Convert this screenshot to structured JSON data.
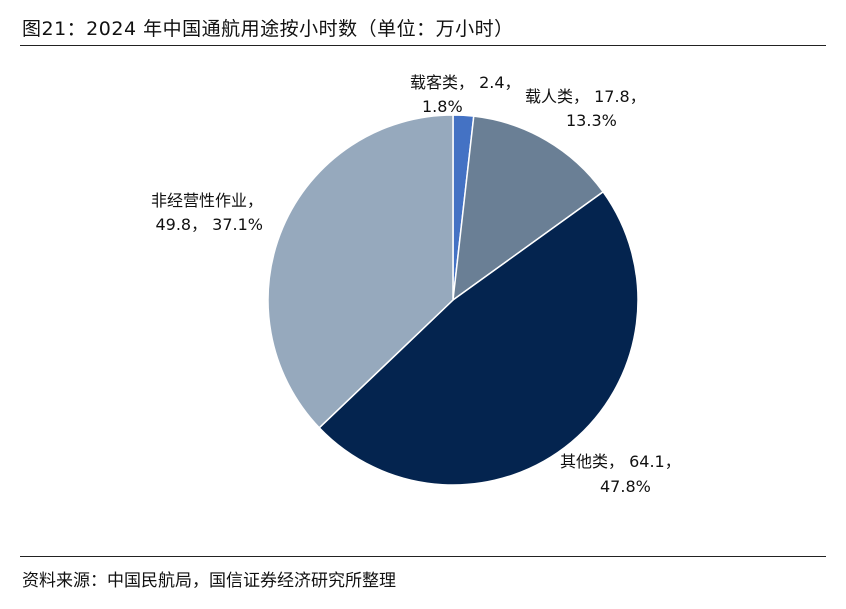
{
  "header": {
    "title": "图21：2024 年中国通航用途按小时数（单位：万小时）"
  },
  "footer": {
    "source": "资料来源：中国民航局，国信证券经济研究所整理"
  },
  "chart_data": {
    "type": "pie",
    "title": "图21：2024 年中国通航用途按小时数（单位：万小时）",
    "unit": "万小时",
    "slices": [
      {
        "name": "载客类",
        "value": 2.4,
        "percent": 1.8,
        "color": "#4472C4",
        "label_line1": "载客类， 2.4，",
        "label_line2": "1.8%"
      },
      {
        "name": "载人类",
        "value": 17.8,
        "percent": 13.3,
        "color": "#6A7F95",
        "label_line1": "载人类， 17.8，",
        "label_line2": "13.3%"
      },
      {
        "name": "其他类",
        "value": 64.1,
        "percent": 47.8,
        "color": "#04244F",
        "label_line1": "其他类， 64.1，",
        "label_line2": "47.8%"
      },
      {
        "name": "非经营性作业",
        "value": 49.8,
        "percent": 37.1,
        "color": "#96A9BD",
        "label_line1": "非经营性作业，",
        "label_line2": "49.8， 37.1%"
      }
    ]
  }
}
